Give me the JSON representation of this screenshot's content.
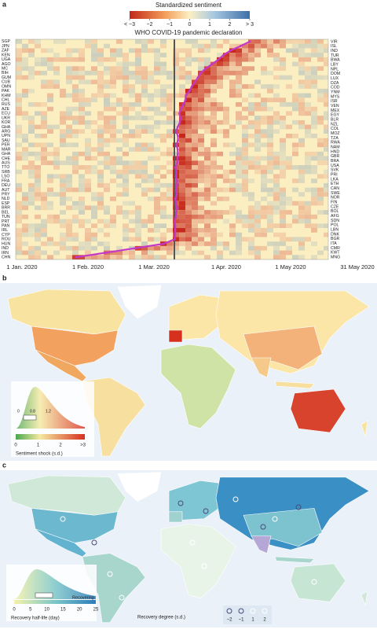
{
  "panels": {
    "a": "a",
    "b": "b",
    "c": "c"
  },
  "chart_data": {
    "type": "heatmap",
    "colorbar_title": "Standardized sentiment",
    "clim": [
      -3,
      3
    ],
    "colorbar_ticks": [
      {
        "value": -3,
        "label": "< −3"
      },
      {
        "value": -2,
        "label": "−2"
      },
      {
        "value": -1,
        "label": "−1"
      },
      0,
      1,
      2,
      {
        "value": 3,
        "label": "> 3"
      }
    ],
    "annotation": "WHO COVID-19 pandemic declaration",
    "x_labels": [
      "1 Jan. 2020",
      "1 Feb. 2020",
      "1 Mar. 2020",
      "1 Apr. 2020",
      "1 May 2020",
      "31 May 2020"
    ],
    "rows_left": [
      "SGP",
      "JPN",
      "ZAF",
      "KEN",
      "UGA",
      "AGO",
      "MC",
      "BIH",
      "GUM",
      "CUB",
      "OMN",
      "PAK",
      "KHM",
      "CHL",
      "RUS",
      "AZE",
      "ECU",
      "UKR",
      "KOR",
      "GHA",
      "ARG",
      "UPN",
      "SAU",
      "PER",
      "MAR",
      "GHA",
      "CHE",
      "AUS",
      "TTO",
      "SRB",
      "LSO",
      "FRA",
      "DEU",
      "AUT",
      "PRY",
      "NLD",
      "ESP",
      "BRR",
      "BEL",
      "TUN",
      "PRT",
      "PAN",
      "IRL",
      "CYP",
      "ROU",
      "HUN",
      "IND",
      "IRN",
      "CHN"
    ],
    "rows_right": [
      "VIR",
      "ISL",
      "IND",
      "TUR",
      "BWA",
      "LBY",
      "NPL",
      "DOM",
      "LUX",
      "DZA",
      "COD",
      "YNM",
      "MYS",
      "ISR",
      "VEN",
      "MEX",
      "EGY",
      "BLR",
      "NZL",
      "COL",
      "MOZ",
      "TZA",
      "RWA",
      "NAM",
      "HND",
      "GBR",
      "BRA",
      "USA",
      "SVK",
      "PRI",
      "LKA",
      "ETH",
      "CAN",
      "SWE",
      "NOR",
      "FIN",
      "CZE",
      "BOL",
      "AFG",
      "SDN",
      "POL",
      "LBN",
      "DNK",
      "BGR",
      "ITA",
      "CMR",
      "KWT",
      "MNG"
    ]
  },
  "map_b": {
    "density_labels": [
      "0",
      "0.8",
      "1.2"
    ],
    "colorbar_labels": [
      "0",
      "1",
      "2",
      ">3"
    ],
    "title": "Sentiment shock (s.d.)"
  },
  "map_c": {
    "recovering": "Recovering",
    "axis_labels": [
      "0",
      "5",
      "10",
      "15",
      "20",
      "25"
    ],
    "title": "Recovery half-life (day)",
    "degree_title": "Recovery degree (s.d.)",
    "degree_labels": [
      "−2",
      "−1",
      "1",
      "2"
    ]
  }
}
